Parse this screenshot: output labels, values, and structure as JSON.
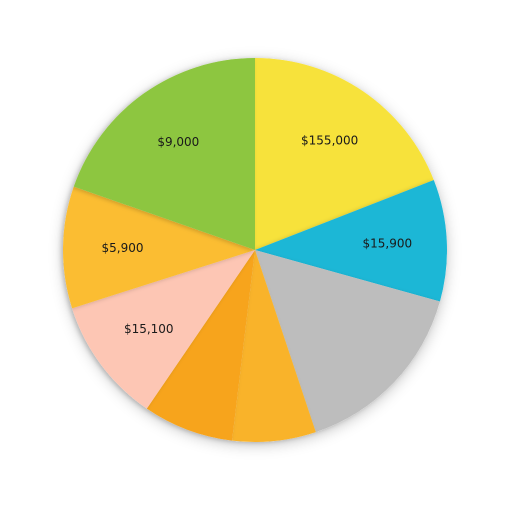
{
  "chart_data": {
    "type": "pie",
    "title": "",
    "legend": "none",
    "slices": [
      {
        "value": 65,
        "label": "$155,000",
        "color": "#f7e23a"
      },
      {
        "value": 35,
        "label": "$15,900",
        "color": "#1eb7d6"
      },
      {
        "value": 53,
        "label": "",
        "color": "#bdbdbd"
      },
      {
        "value": 24,
        "label": "",
        "color": "#f9b32a"
      },
      {
        "value": 26,
        "label": "",
        "color": "#f7a41c"
      },
      {
        "value": 36,
        "label": "$15,100",
        "color": "#fdc6b4"
      },
      {
        "value": 35,
        "label": "$5,900",
        "color": "#fbbd33"
      },
      {
        "value": 67,
        "label": "$9,000",
        "color": "#8dc63f"
      }
    ]
  }
}
